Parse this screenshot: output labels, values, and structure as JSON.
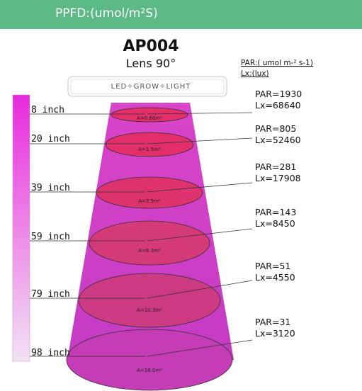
{
  "header": {
    "title": "PPFD:(umol/m²S)"
  },
  "model": {
    "name": "AP004",
    "lens": "Lens 90°"
  },
  "legend": {
    "par_label": "PAR:( umol m-² s-1)",
    "lx_label": "Lx:(lux)"
  },
  "fixture": {
    "brand_text": "LED✧GROW✧LIGHT"
  },
  "colors": {
    "banner": "#5cba86",
    "beam": "#c93acb",
    "ellipse": "#e0306a",
    "scale_top": "#e82adb",
    "scale_bottom": "#f2e2f4"
  },
  "levels": [
    {
      "distance": "8 inch",
      "area": "A=0.66m²",
      "par": "PAR=1930",
      "lx": "Lx=68640"
    },
    {
      "distance": "20 inch",
      "area": "A=1.5m²",
      "par": "PAR=805",
      "lx": "Lx=52460"
    },
    {
      "distance": "39 inch",
      "area": "A=3.9m²",
      "par": "PAR=281",
      "lx": "Lx=17908"
    },
    {
      "distance": "59 inch",
      "area": "A=6.3m²",
      "par": "PAR=143",
      "lx": "Lx=8450"
    },
    {
      "distance": "79 inch",
      "area": "A=10.3m²",
      "par": "PAR=51",
      "lx": "Lx=4550"
    },
    {
      "distance": "98 inch",
      "area": "A=16.0m²",
      "par": "PAR=31",
      "lx": "Lx=3120"
    }
  ]
}
